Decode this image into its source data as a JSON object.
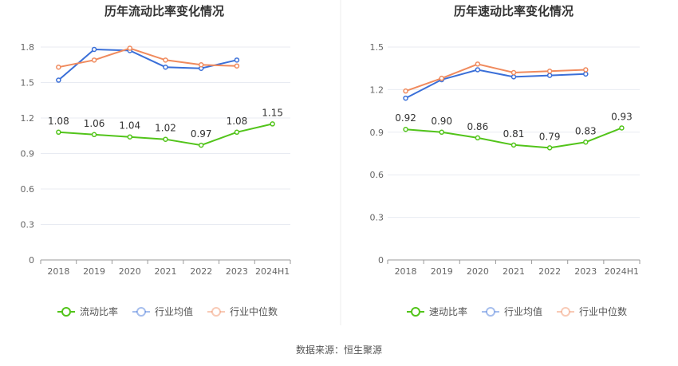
{
  "chart_data": [
    {
      "type": "line",
      "title": "历年流动比率变化情况",
      "categories": [
        "2018",
        "2019",
        "2020",
        "2021",
        "2022",
        "2023",
        "2024H1"
      ],
      "ylim": [
        0,
        1.8
      ],
      "yticks": [
        "0",
        "0.3",
        "0.6",
        "0.9",
        "1.2",
        "1.5",
        "1.8"
      ],
      "grid": true,
      "legend_position": "bottom",
      "series": [
        {
          "name": "流动比率",
          "color": "#52c41a",
          "values": [
            1.08,
            1.06,
            1.04,
            1.02,
            0.97,
            1.08,
            1.15
          ],
          "labels": [
            "1.08",
            "1.06",
            "1.04",
            "1.02",
            "0.97",
            "1.08",
            "1.15"
          ]
        },
        {
          "name": "行业均值",
          "color": "#3a6fd8",
          "values": [
            1.52,
            1.78,
            1.77,
            1.63,
            1.62,
            1.69,
            null
          ]
        },
        {
          "name": "行业中位数",
          "color": "#f08a5d",
          "values": [
            1.63,
            1.69,
            1.79,
            1.69,
            1.65,
            1.64,
            null
          ]
        }
      ]
    },
    {
      "type": "line",
      "title": "历年速动比率变化情况",
      "categories": [
        "2018",
        "2019",
        "2020",
        "2021",
        "2022",
        "2023",
        "2024H1"
      ],
      "ylim": [
        0,
        1.5
      ],
      "yticks": [
        "0",
        "0.3",
        "0.6",
        "0.9",
        "1.2",
        "1.5"
      ],
      "grid": true,
      "legend_position": "bottom",
      "series": [
        {
          "name": "速动比率",
          "color": "#52c41a",
          "values": [
            0.92,
            0.9,
            0.86,
            0.81,
            0.79,
            0.83,
            0.93
          ],
          "labels": [
            "0.92",
            "0.90",
            "0.86",
            "0.81",
            "0.79",
            "0.83",
            "0.93"
          ]
        },
        {
          "name": "行业均值",
          "color": "#3a6fd8",
          "values": [
            1.14,
            1.27,
            1.34,
            1.29,
            1.3,
            1.31,
            null
          ]
        },
        {
          "name": "行业中位数",
          "color": "#f08a5d",
          "values": [
            1.19,
            1.28,
            1.38,
            1.32,
            1.33,
            1.34,
            null
          ]
        }
      ]
    }
  ],
  "footer": {
    "source": "数据来源：恒生聚源"
  }
}
